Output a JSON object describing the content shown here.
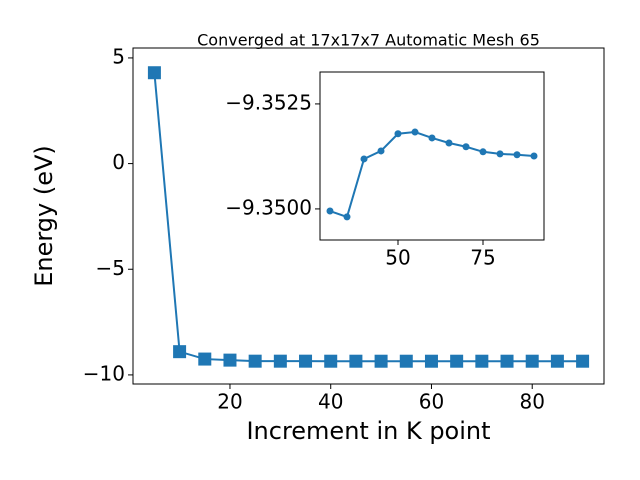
{
  "chart_data": [
    {
      "type": "line",
      "title": "Converged at 17x17x7 Automatic Mesh 65",
      "xlabel": "Increment in K point",
      "ylabel": "Energy (eV)",
      "x": [
        5,
        10,
        15,
        20,
        25,
        30,
        35,
        40,
        45,
        50,
        55,
        60,
        65,
        70,
        75,
        80,
        85,
        90
      ],
      "series": [
        {
          "color": "#1f77b4",
          "marker": "square",
          "values": [
            4.3,
            -8.9,
            -9.25,
            -9.3,
            -9.35,
            -9.34995,
            -9.34981,
            -9.35119,
            -9.35138,
            -9.35179,
            -9.35183,
            -9.35169,
            -9.35157,
            -9.35148,
            -9.35136,
            -9.35131,
            -9.35129,
            -9.35126
          ]
        }
      ],
      "xlim": [
        0.75,
        94.25
      ],
      "ylim": [
        -10.43,
        5.47
      ],
      "xticks": [
        20,
        40,
        60,
        80
      ],
      "yticks": [
        {
          "value": -10,
          "label": "−10"
        },
        {
          "value": -5,
          "label": "−5"
        },
        0,
        5
      ]
    },
    {
      "type": "line",
      "x": [
        30,
        35,
        40,
        45,
        50,
        55,
        60,
        65,
        70,
        75,
        80,
        85,
        90
      ],
      "series": [
        {
          "color": "#1f77b4",
          "marker": "circle",
          "values": [
            -9.34995,
            -9.34981,
            -9.35119,
            -9.35138,
            -9.35179,
            -9.35183,
            -9.35169,
            -9.35157,
            -9.35148,
            -9.35136,
            -9.35131,
            -9.35129,
            -9.35126
          ]
        }
      ],
      "xlim": [
        27.06,
        92.94
      ],
      "ylim": [
        -9.34926,
        -9.35326
      ],
      "xticks": [
        50,
        75
      ],
      "yticks": [
        {
          "value": -9.3525,
          "label": "−9.3525"
        },
        {
          "value": -9.35,
          "label": "−9.3500"
        }
      ]
    }
  ]
}
